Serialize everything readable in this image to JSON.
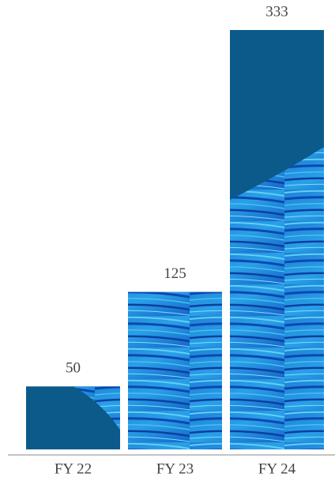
{
  "chart_data": {
    "type": "bar",
    "categories": [
      "FY 22",
      "FY 23",
      "FY 24"
    ],
    "values": [
      50,
      125,
      333
    ],
    "color": "#0b5a8a"
  }
}
